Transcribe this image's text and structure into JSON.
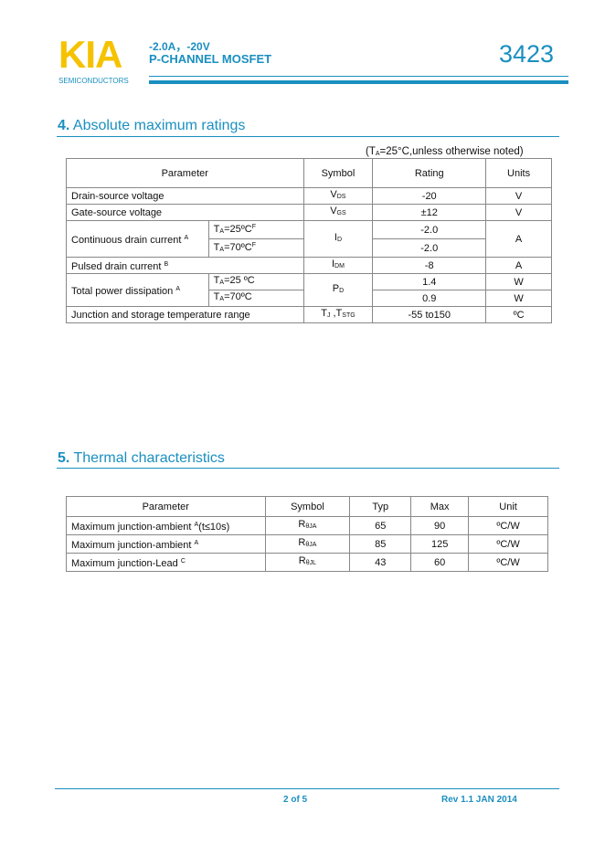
{
  "header": {
    "logo": "KIA",
    "logo_sub": "SEMICONDUCTORS",
    "line1": "-2.0A，-20V",
    "line2": "P-CHANNEL MOSFET",
    "part": "3423",
    "brand_color": "#F5C200",
    "accent_color": "#1a8fc0"
  },
  "section4": {
    "num": "4.",
    "title": "Absolute maximum ratings",
    "note_pre": "(T",
    "note_sub": "A",
    "note_post": "=25°C,unless otherwise noted)",
    "headers": [
      "Parameter",
      "Symbol",
      "Rating",
      "Units"
    ],
    "rows": [
      {
        "param": "Drain-source voltage",
        "sym": "V",
        "sub": "DS",
        "rating": "-20",
        "unit": "V"
      },
      {
        "param": "Gate-source voltage",
        "sym": "V",
        "sub": "GS",
        "rating": "±12",
        "unit": "V"
      },
      {
        "param": "Continuous drain current",
        "sup": "A",
        "cond1": "T",
        "cond1_sub": "A",
        "cond1_post": "=25ºC",
        "cond1_sup": "F",
        "cond2": "T",
        "cond2_sub": "A",
        "cond2_post": "=70ºC",
        "cond2_sup": "F",
        "sym": "I",
        "sub": "D",
        "rating1": "-2.0",
        "rating2": "-2.0",
        "unit": "A"
      },
      {
        "param": "Pulsed drain current",
        "sup": "B",
        "sym": "I",
        "sub": "DM",
        "rating": "-8",
        "unit": "A"
      },
      {
        "param": "Total power dissipation",
        "sup": "A",
        "cond1": "T",
        "cond1_sub": "A",
        "cond1_post": "=25 ºC",
        "cond2": "T",
        "cond2_sub": "A",
        "cond2_post": "=70ºC",
        "sym": "P",
        "sub": "D",
        "rating1": "1.4",
        "rating2": "0.9",
        "unit1": "W",
        "unit2": "W"
      },
      {
        "param": "Junction and storage temperature range",
        "sym": "T",
        "sub": "J",
        "sym2": " ,T",
        "sub2": "STG",
        "rating": "-55 to150",
        "unit": "ºC"
      }
    ]
  },
  "section5": {
    "num": "5.",
    "title": "Thermal characteristics",
    "headers": [
      "Parameter",
      "Symbol",
      "Typ",
      "Max",
      "Unit"
    ],
    "rows": [
      {
        "param": "Maximum junction-ambient ",
        "sup": "A",
        "post": "(t≤10s)",
        "sym": "R",
        "sub": "θJA",
        "typ": "65",
        "max": "90",
        "unit": "ºC/W"
      },
      {
        "param": "Maximum junction-ambient ",
        "sup": "A",
        "post": "",
        "sym": "R",
        "sub": "θJA",
        "typ": "85",
        "max": "125",
        "unit": "ºC/W"
      },
      {
        "param": "Maximum junction-Lead ",
        "sup": "C",
        "post": "",
        "sym": "R",
        "sub": "θJL",
        "typ": "43",
        "max": "60",
        "unit": "ºC/W"
      }
    ]
  },
  "footer": {
    "page": "2 of 5",
    "rev": "Rev 1.1 JAN 2014"
  }
}
